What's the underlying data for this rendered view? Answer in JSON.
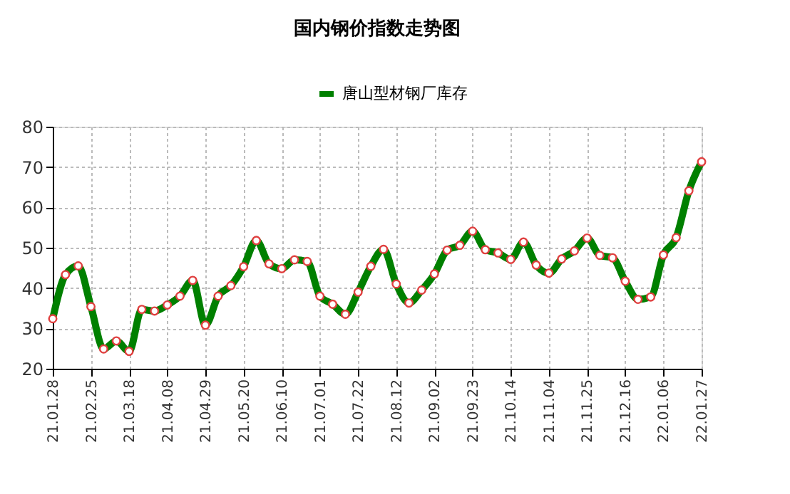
{
  "chart_data": {
    "type": "line",
    "title": "国内钢价指数走势图",
    "categories": [
      "21.01.28",
      null,
      null,
      "21.02.25",
      null,
      null,
      "21.03.18",
      null,
      null,
      "21.04.08",
      null,
      null,
      "21.04.29",
      null,
      null,
      "21.05.20",
      null,
      null,
      "21.06.10",
      null,
      null,
      "21.07.01",
      null,
      null,
      "21.07.22",
      null,
      null,
      "21.08.12",
      null,
      null,
      "21.09.02",
      null,
      null,
      "21.09.23",
      null,
      null,
      "21.10.14",
      null,
      null,
      "21.11.04",
      null,
      null,
      "21.11.25",
      null,
      null,
      "21.12.16",
      null,
      null,
      "22.01.06",
      null,
      null,
      "22.01.27"
    ],
    "series": [
      {
        "name": "唐山型材钢厂库存",
        "color": "#008000",
        "values": [
          32.4,
          43.3,
          45.5,
          35.4,
          24.9,
          26.9,
          24.3,
          34.7,
          34.3,
          35.8,
          38,
          41.9,
          30.8,
          38,
          40.6,
          45.3,
          51.8,
          46,
          44.8,
          47,
          46.6,
          38,
          36,
          33.5,
          39,
          45.4,
          49.6,
          41,
          36.3,
          39.5,
          43.5,
          49.4,
          50.6,
          54.1,
          49.5,
          48.7,
          47.1,
          51.4,
          45.7,
          43.7,
          47.2,
          49.2,
          52.4,
          48.1,
          47.5,
          41.7,
          37.2,
          37.8,
          48.2,
          52.5,
          64.1,
          71.3
        ]
      }
    ],
    "ylim": [
      20,
      80
    ],
    "yticks": [
      20,
      30,
      40,
      50,
      60,
      70,
      80
    ],
    "grid": true,
    "legend": "top",
    "marker": "circle",
    "line_style": "solid"
  }
}
